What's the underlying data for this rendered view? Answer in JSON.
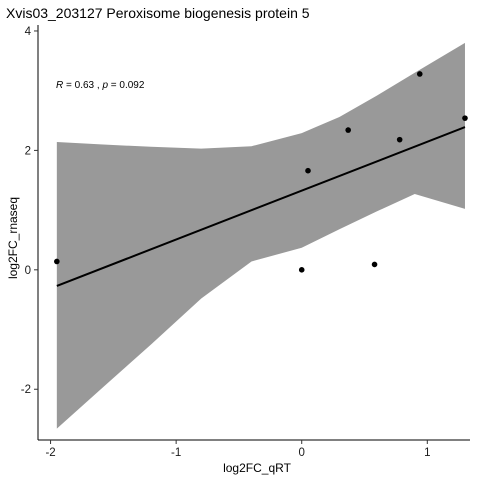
{
  "chart_data": {
    "type": "scatter",
    "title": "Xvis03_203127   Peroxisome biogenesis protein 5",
    "xlabel": "log2FC_qRT",
    "ylabel": "log2FC_rnaseq",
    "xlim": [
      -2.1,
      1.34
    ],
    "ylim": [
      -2.85,
      4.1
    ],
    "x_ticks": [
      -2,
      -1,
      0,
      1
    ],
    "x_tick_labels": [
      "-2",
      "-1",
      "0",
      "1"
    ],
    "y_ticks": [
      -2,
      0,
      2,
      4
    ],
    "y_tick_labels": [
      "-2",
      "0",
      "2",
      "4"
    ],
    "grid": false,
    "annotation": {
      "r_symbol": "R",
      "r_text": " = 0.63 , ",
      "p_symbol": "p",
      "p_text": " = 0.092"
    },
    "points": [
      {
        "x": -1.95,
        "y": 0.14
      },
      {
        "x": 0.0,
        "y": 0.0
      },
      {
        "x": 0.05,
        "y": 1.66
      },
      {
        "x": 0.37,
        "y": 2.34
      },
      {
        "x": 0.58,
        "y": 0.09
      },
      {
        "x": 0.78,
        "y": 2.18
      },
      {
        "x": 0.94,
        "y": 3.28
      },
      {
        "x": 1.3,
        "y": 2.54
      }
    ],
    "regression_line": {
      "x": [
        -1.95,
        1.3
      ],
      "y": [
        -0.27,
        2.39
      ]
    },
    "confidence_band": {
      "x": [
        -1.95,
        -1.6,
        -1.2,
        -0.8,
        -0.4,
        0.0,
        0.3,
        0.6,
        0.9,
        1.3
      ],
      "upper": [
        2.14,
        2.1,
        2.06,
        2.03,
        2.07,
        2.29,
        2.56,
        2.92,
        3.3,
        3.8
      ],
      "lower": [
        -2.66,
        -2.0,
        -1.25,
        -0.48,
        0.14,
        0.37,
        0.68,
        0.98,
        1.27,
        1.02
      ]
    },
    "colors": {
      "band": "#999999",
      "line": "#000000",
      "point": "#000000"
    }
  }
}
